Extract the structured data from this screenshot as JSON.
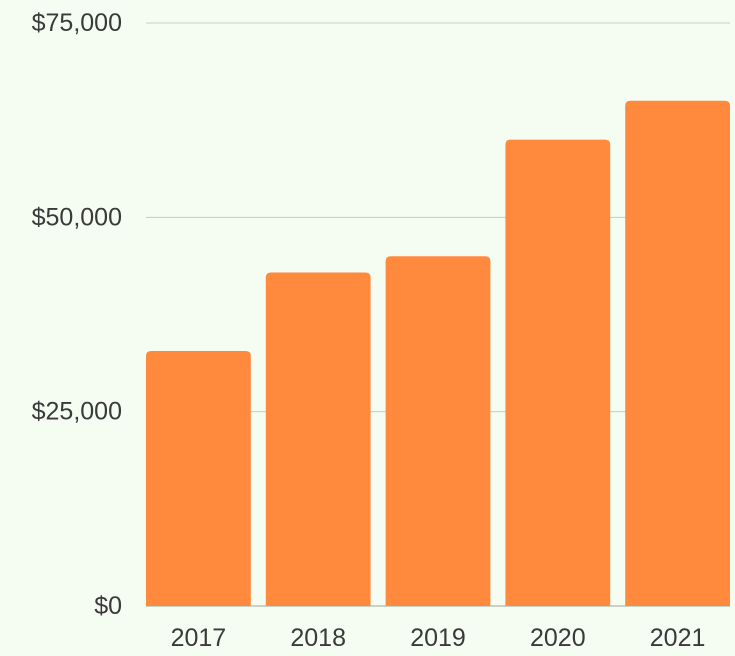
{
  "chart_data": {
    "type": "bar",
    "title": "",
    "xlabel": "",
    "ylabel": "",
    "categories": [
      "2017",
      "2018",
      "2019",
      "2020",
      "2021"
    ],
    "values": [
      32800,
      42900,
      45000,
      60000,
      65000
    ],
    "ylim": [
      0,
      75000
    ],
    "yticks": [
      0,
      25000,
      50000,
      75000
    ],
    "ytick_labels": [
      "$0",
      "$25,000",
      "$50,000",
      "$75,000"
    ],
    "grid": true,
    "legend": "none",
    "colors": {
      "bar": "#ff8a3d",
      "grid": "#c4cec0",
      "background": "#f5fdf2",
      "text": "#3a3a3a"
    }
  }
}
